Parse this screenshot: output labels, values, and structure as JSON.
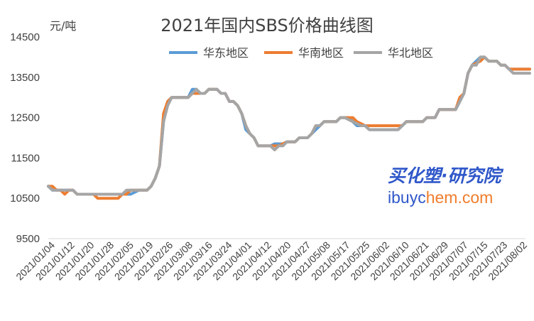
{
  "chart_data": {
    "type": "line",
    "title": "2021年国内SBS价格曲线图",
    "unit_label": "元/吨",
    "ylim": [
      9500,
      14500
    ],
    "y_ticks": [
      "14500",
      "13500",
      "12500",
      "11500",
      "10500",
      "9500"
    ],
    "x_ticks": [
      "2021/01/04",
      "2021/01/12",
      "2021/01/20",
      "2021/01/28",
      "2021/02/05",
      "2021/02/19",
      "2021/02/26",
      "2021/03/08",
      "2021/03/16",
      "2021/03/24",
      "2021/04/01",
      "2021/04/12",
      "2021/04/20",
      "2021/04/27",
      "2021/05/08",
      "2021/05/17",
      "2021/05/25",
      "2021/06/02",
      "2021/06/10",
      "2021/06/21",
      "2021/06/29",
      "2021/07/07",
      "2021/07/15",
      "2021/07/23",
      "2021/08/02"
    ],
    "legend_position": "top",
    "grid": false,
    "series": [
      {
        "name": "华东地区",
        "color": "#5b9bd5",
        "values": [
          10800,
          10700,
          10700,
          10700,
          10700,
          10700,
          10700,
          10600,
          10600,
          10600,
          10600,
          10600,
          10600,
          10600,
          10600,
          10600,
          10600,
          10600,
          10600,
          10600,
          10600,
          10650,
          10700,
          10700,
          10700,
          10800,
          11000,
          11300,
          12400,
          12900,
          13000,
          13000,
          13000,
          13000,
          13000,
          13200,
          13200,
          13100,
          13100,
          13200,
          13200,
          13200,
          13100,
          13100,
          12900,
          12900,
          12800,
          12600,
          12200,
          12100,
          12000,
          11800,
          11800,
          11800,
          11800,
          11850,
          11850,
          11850,
          11900,
          11900,
          11900,
          12000,
          12000,
          12000,
          12100,
          12200,
          12300,
          12400,
          12400,
          12400,
          12400,
          12500,
          12500,
          12500,
          12400,
          12300,
          12300,
          12300,
          12200,
          12200,
          12200,
          12200,
          12200,
          12200,
          12200,
          12200,
          12300,
          12400,
          12400,
          12400,
          12400,
          12400,
          12500,
          12500,
          12500,
          12700,
          12700,
          12700,
          12700,
          12700,
          12900,
          13100,
          13600,
          13800,
          13900,
          14000,
          14000,
          13900,
          13900,
          13900,
          13800,
          13800,
          13700,
          13700,
          13700,
          13700,
          13700,
          13700
        ]
      },
      {
        "name": "华南地区",
        "color": "#ed7d31",
        "values": [
          10800,
          10800,
          10700,
          10700,
          10600,
          10700,
          10700,
          10600,
          10600,
          10600,
          10600,
          10600,
          10500,
          10500,
          10500,
          10500,
          10500,
          10500,
          10600,
          10600,
          10700,
          10700,
          10700,
          10700,
          10700,
          10800,
          11000,
          11300,
          12600,
          12900,
          13000,
          13000,
          13000,
          13000,
          13000,
          13100,
          13100,
          13100,
          13100,
          13200,
          13200,
          13200,
          13100,
          13100,
          12900,
          12900,
          12800,
          12600,
          12300,
          12100,
          12000,
          11800,
          11800,
          11800,
          11800,
          11800,
          11800,
          11850,
          11900,
          11900,
          11900,
          12000,
          12000,
          12000,
          12100,
          12300,
          12300,
          12400,
          12400,
          12400,
          12400,
          12500,
          12500,
          12500,
          12500,
          12400,
          12350,
          12300,
          12300,
          12300,
          12300,
          12300,
          12300,
          12300,
          12300,
          12300,
          12300,
          12400,
          12400,
          12400,
          12400,
          12400,
          12500,
          12500,
          12500,
          12700,
          12700,
          12700,
          12700,
          12700,
          13000,
          13100,
          13600,
          13800,
          13850,
          13900,
          14000,
          13900,
          13900,
          13900,
          13800,
          13800,
          13700,
          13700,
          13700,
          13700,
          13700,
          13700
        ]
      },
      {
        "name": "华北地区",
        "color": "#a5a5a5",
        "values": [
          10800,
          10700,
          10700,
          10700,
          10700,
          10700,
          10700,
          10600,
          10600,
          10600,
          10600,
          10600,
          10600,
          10600,
          10600,
          10600,
          10600,
          10600,
          10600,
          10700,
          10700,
          10700,
          10700,
          10700,
          10700,
          10800,
          11000,
          11300,
          12400,
          12800,
          13000,
          13000,
          13000,
          13000,
          13000,
          13100,
          13200,
          13100,
          13100,
          13200,
          13200,
          13200,
          13100,
          13100,
          12900,
          12900,
          12800,
          12600,
          12300,
          12100,
          12000,
          11800,
          11800,
          11800,
          11800,
          11700,
          11800,
          11800,
          11900,
          11900,
          11900,
          12000,
          12000,
          12000,
          12100,
          12300,
          12300,
          12400,
          12400,
          12400,
          12400,
          12500,
          12500,
          12450,
          12400,
          12350,
          12300,
          12300,
          12200,
          12200,
          12200,
          12200,
          12200,
          12200,
          12200,
          12200,
          12300,
          12400,
          12400,
          12400,
          12400,
          12400,
          12500,
          12500,
          12500,
          12700,
          12700,
          12700,
          12700,
          12700,
          12900,
          13100,
          13600,
          13800,
          13800,
          14000,
          14000,
          13900,
          13900,
          13900,
          13800,
          13800,
          13700,
          13600,
          13600,
          13600,
          13600,
          13600
        ]
      }
    ]
  },
  "watermark": {
    "line1": "买化塑·研究院",
    "line2_a": "ibuyc",
    "line2_b": "hem.com"
  }
}
